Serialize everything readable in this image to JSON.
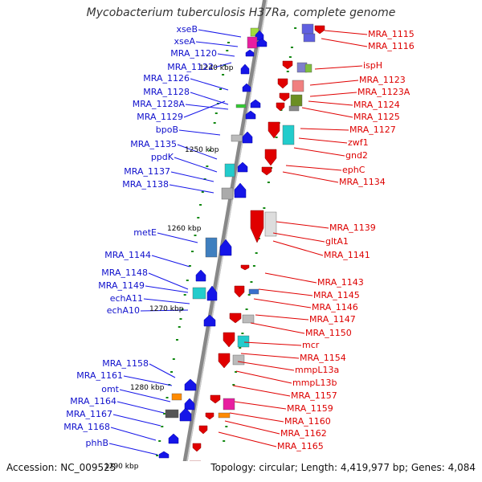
{
  "title": "Mycobacterium tuberculosis H37Ra, complete genome",
  "footer": {
    "accession": "Accession: NC_009525",
    "topology": "Topology: circular; Length: 4,419,977 bp; Genes: 4,084"
  },
  "colors": {
    "leftStrand": "#1515e8",
    "rightStrand": "#e00000",
    "backbone": "#888888",
    "tick": "#118811"
  },
  "kbp_marks": [
    "1240 kbp",
    "1250 kbp",
    "1260 kbp",
    "1270 kbp",
    "1280 kbp",
    "1290 kbp"
  ],
  "left_labels": [
    "xseB",
    "xseA",
    "MRA_1120",
    "MRA_1122",
    "MRA_1126",
    "MRA_1128",
    "MRA_1128A",
    "MRA_1129",
    "bpoB",
    "MRA_1135",
    "ppdK",
    "MRA_1137",
    "MRA_1138",
    "metE",
    "MRA_1144",
    "MRA_1148",
    "MRA_1149",
    "echA11",
    "echA10",
    "MRA_1158",
    "MRA_1161",
    "omt",
    "MRA_1164",
    "MRA_1167",
    "MRA_1168",
    "phhB"
  ],
  "right_labels": [
    "MRA_1115",
    "MRA_1116",
    "ispH",
    "MRA_1123",
    "MRA_1123A",
    "MRA_1124",
    "MRA_1125",
    "MRA_1127",
    "zwf1",
    "gnd2",
    "ephC",
    "MRA_1134",
    "MRA_1139",
    "gltA1",
    "MRA_1141",
    "MRA_1143",
    "MRA_1145",
    "MRA_1146",
    "MRA_1147",
    "MRA_1150",
    "mcr",
    "MRA_1154",
    "mmpL13a",
    "mmpL13b",
    "MRA_1157",
    "MRA_1159",
    "MRA_1160",
    "MRA_1162",
    "MRA_1165"
  ]
}
